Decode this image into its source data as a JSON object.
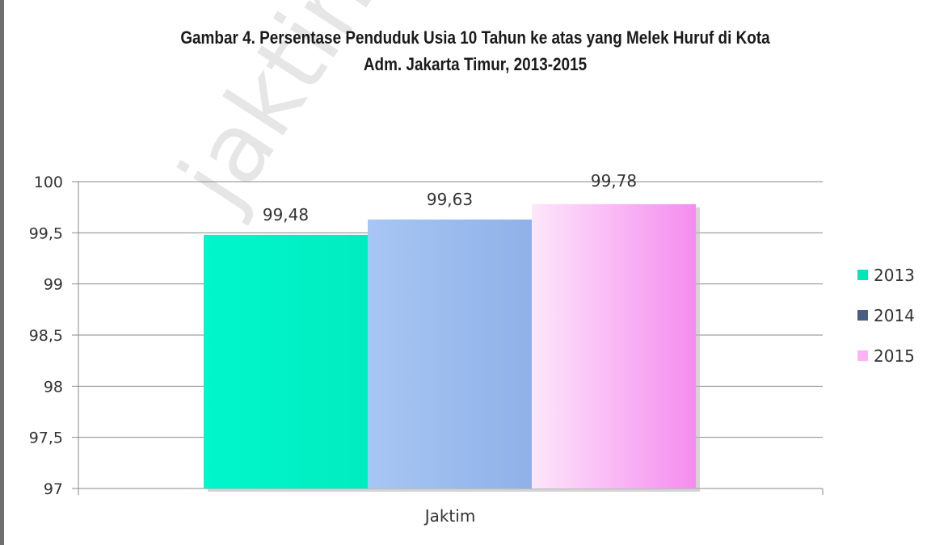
{
  "watermark": "jaktim",
  "chart_data": {
    "type": "bar",
    "title_lines": [
      "Gambar 4. Persentase Penduduk Usia 10 Tahun ke atas yang Melek Huruf di Kota",
      "Adm. Jakarta Timur, 2013-2015"
    ],
    "categories": [
      "Jaktim"
    ],
    "series": [
      {
        "name": "2013",
        "values": [
          99.48
        ],
        "label": "99,48",
        "color": "#00f5c8",
        "legend_color": "#00e5b9"
      },
      {
        "name": "2014",
        "values": [
          99.63
        ],
        "label": "99,63",
        "color": "#9dbdee",
        "legend_color": "#4a5f80"
      },
      {
        "name": "2015",
        "values": [
          99.78
        ],
        "label": "99,78",
        "color": "#f7a6f2",
        "legend_color": "#ffb3f5"
      }
    ],
    "yticks": [
      97,
      97.5,
      98,
      98.5,
      99,
      99.5,
      100
    ],
    "ytick_labels": [
      "97",
      "97,5",
      "98",
      "98,5",
      "99",
      "99,5",
      "100"
    ],
    "ylim": [
      97,
      100
    ],
    "grid": true,
    "legend_position": "right"
  }
}
